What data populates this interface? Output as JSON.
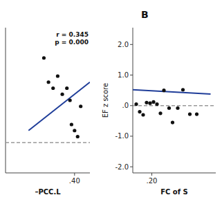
{
  "chart_data": [
    {
      "type": "scatter",
      "annotation": "r = 0.345\np = 0.000",
      "x_label": "–PCC.L",
      "xlim": [
        -0.05,
        0.5
      ],
      "ylim": [
        0.15,
        1.35
      ],
      "xticks": [
        {
          "value": 0.4,
          "label": ".40"
        }
      ],
      "yticks": [],
      "tick_labels": "x",
      "series": [
        {
          "type": "scatter",
          "color": "#111111",
          "marker": "circle",
          "x": [
            0.2,
            0.23,
            0.26,
            0.29,
            0.32,
            0.35,
            0.37,
            0.38,
            0.4,
            0.42,
            0.44
          ],
          "values": [
            1.1,
            0.9,
            0.85,
            0.95,
            0.8,
            0.85,
            0.75,
            0.55,
            0.5,
            0.45,
            0.7
          ]
        },
        {
          "type": "line",
          "color": "#1f3d99",
          "line_style": "solid",
          "x": [
            0.1,
            0.5
          ],
          "values": [
            0.5,
            0.9
          ]
        },
        {
          "type": "hline",
          "color": "#999999",
          "line_style": "dashed",
          "values": [
            0.4
          ]
        }
      ]
    },
    {
      "type": "scatter",
      "title": "B",
      "x_label": "FC of S",
      "y_label": "EF z score",
      "xlim": [
        0.145,
        0.385
      ],
      "ylim": [
        -2.2,
        2.55
      ],
      "xticks": [
        {
          "value": 0.2,
          "label": ".20"
        }
      ],
      "yticks": [
        {
          "value": -2.0,
          "label": "-2.0"
        },
        {
          "value": -1.0,
          "label": "-1.0"
        },
        {
          "value": 0.0,
          "label": ".0"
        },
        {
          "value": 1.0,
          "label": "1.0"
        },
        {
          "value": 2.0,
          "label": "2.0"
        }
      ],
      "series": [
        {
          "type": "scatter",
          "color": "#111111",
          "marker": "circle",
          "x": [
            0.155,
            0.165,
            0.175,
            0.185,
            0.195,
            0.205,
            0.215,
            0.225,
            0.235,
            0.25,
            0.26,
            0.275,
            0.29,
            0.31,
            0.33
          ],
          "values": [
            0.05,
            -0.2,
            -0.3,
            0.1,
            0.08,
            0.12,
            0.05,
            -0.25,
            0.5,
            -0.08,
            -0.55,
            -0.08,
            0.52,
            -0.28,
            -0.28
          ]
        },
        {
          "type": "line",
          "color": "#1f3d99",
          "line_style": "solid",
          "x": [
            0.145,
            0.37
          ],
          "values": [
            0.52,
            0.38
          ]
        },
        {
          "type": "hline",
          "color": "#999999",
          "line_style": "dashed",
          "values": [
            0.0
          ]
        }
      ]
    }
  ]
}
